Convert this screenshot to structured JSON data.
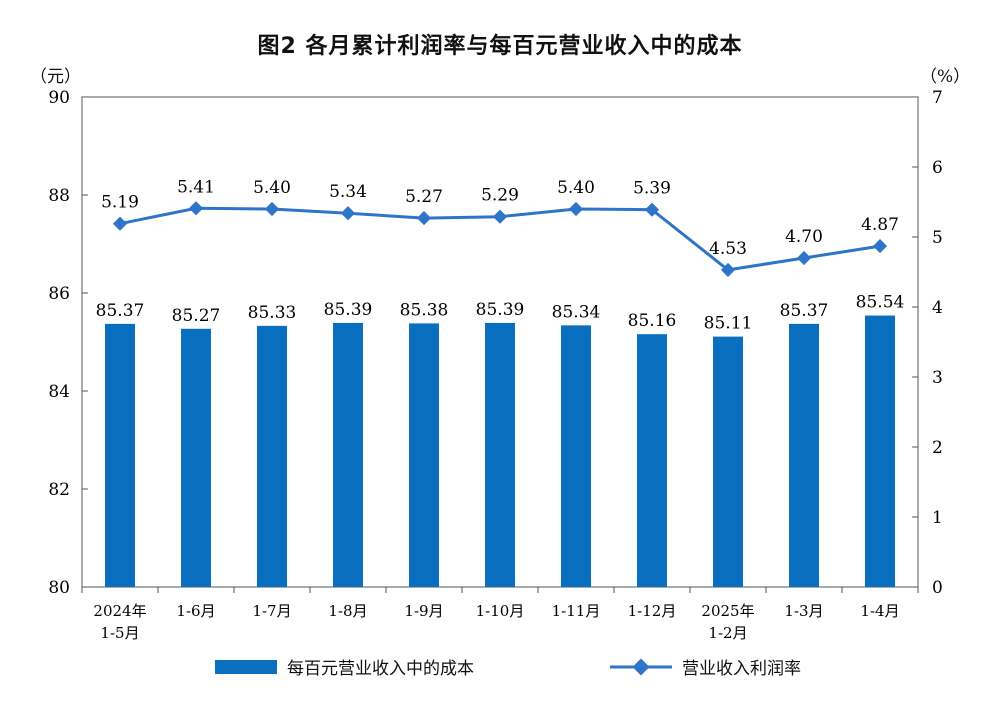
{
  "title": "图2  各月累计利润率与每百元营业收入中的成本",
  "left_unit": "（元）",
  "right_unit": "（%）",
  "legend": {
    "bar_label": "每百元营业收入中的成本",
    "line_label": "营业收入利润率"
  },
  "colors": {
    "bar": "#0b6fc0",
    "line": "#2e74c9"
  },
  "chart_data": {
    "type": "bar+line",
    "categories": [
      [
        "2024年",
        "1-5月"
      ],
      [
        "1-6月"
      ],
      [
        "1-7月"
      ],
      [
        "1-8月"
      ],
      [
        "1-9月"
      ],
      [
        "1-10月"
      ],
      [
        "1-11月"
      ],
      [
        "1-12月"
      ],
      [
        "2025年",
        "1-2月"
      ],
      [
        "1-3月"
      ],
      [
        "1-4月"
      ]
    ],
    "series": [
      {
        "name": "每百元营业收入中的成本",
        "axis": "left",
        "type": "bar",
        "values": [
          85.37,
          85.27,
          85.33,
          85.39,
          85.38,
          85.39,
          85.34,
          85.16,
          85.11,
          85.37,
          85.54
        ]
      },
      {
        "name": "营业收入利润率",
        "axis": "right",
        "type": "line",
        "values": [
          5.19,
          5.41,
          5.4,
          5.34,
          5.27,
          5.29,
          5.4,
          5.39,
          4.53,
          4.7,
          4.87
        ]
      }
    ],
    "left_axis": {
      "range": [
        80,
        90
      ],
      "ticks": [
        80,
        82,
        84,
        86,
        88,
        90
      ]
    },
    "right_axis": {
      "range": [
        0,
        7
      ],
      "ticks": [
        0,
        1,
        2,
        3,
        4,
        5,
        6,
        7
      ]
    },
    "grid": false,
    "legend_position": "bottom"
  }
}
